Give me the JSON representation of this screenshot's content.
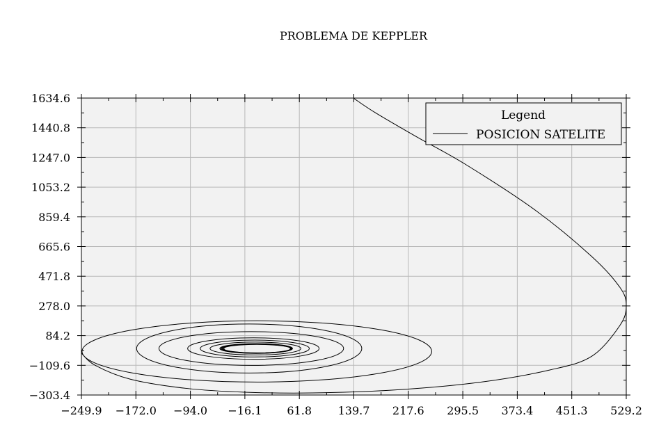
{
  "chart_data": {
    "type": "line",
    "title": "PROBLEMA DE KEPPLER",
    "xlabel": "",
    "ylabel": "",
    "xlim": [
      -249.9,
      529.2
    ],
    "ylim": [
      -303.4,
      1634.6
    ],
    "x_ticks": [
      "−249.9",
      "−172.0",
      "−94.0",
      "−16.1",
      "61.8",
      "139.7",
      "217.6",
      "295.5",
      "373.4",
      "451.3",
      "529.2"
    ],
    "y_ticks": [
      "1634.6",
      "1440.8",
      "1247.0",
      "1053.2",
      "859.4",
      "665.6",
      "471.8",
      "278.0",
      "84.2",
      "−109.6",
      "−303.4"
    ],
    "grid": true,
    "legend": {
      "title": "Legend",
      "placement": "top-right"
    },
    "series": [
      {
        "name": "POSICION SATELITE",
        "color": "#000000",
        "segments": [
          {
            "kind": "ellipse",
            "cx": 0,
            "cy": 0,
            "rx": 52,
            "ry": 32,
            "turns": 6
          },
          {
            "kind": "ellipse",
            "cx": -1,
            "cy": 0,
            "rx": 65,
            "ry": 42,
            "turns": 1
          },
          {
            "kind": "ellipse",
            "cx": -2,
            "cy": 0,
            "rx": 78,
            "ry": 55,
            "turns": 1
          },
          {
            "kind": "ellipse",
            "cx": -4,
            "cy": 0,
            "rx": 94,
            "ry": 70,
            "turns": 1
          },
          {
            "kind": "ellipse",
            "cx": -7,
            "cy": 0,
            "rx": 132,
            "ry": 110,
            "turns": 1
          },
          {
            "kind": "ellipse",
            "cx": -10,
            "cy": 0,
            "rx": 161,
            "ry": 160,
            "turns": 1
          },
          {
            "kind": "ellipse",
            "cx": 1,
            "cy": -19,
            "rx": 250,
            "ry": 200,
            "turns": 1
          }
        ],
        "outgoing": {
          "x": [
            -250,
            -230,
            -180,
            -100,
            -16,
            80,
            200,
            320,
            420,
            480,
            520,
            529.2,
            520,
            480,
            400,
            300,
            230,
            170,
            139
          ],
          "y": [
            -30,
            -110,
            -200,
            -260,
            -285,
            -290,
            -270,
            -220,
            -140,
            -50,
            150,
            280,
            400,
            600,
            900,
            1200,
            1380,
            1540,
            1634.6
          ]
        }
      }
    ]
  }
}
